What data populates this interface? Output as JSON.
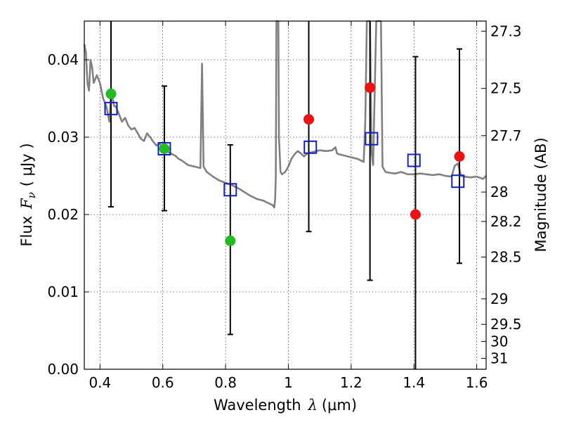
{
  "chart_data": {
    "type": "scatter",
    "xlabel": "Wavelength",
    "xlabel_symbol": "λ",
    "xlabel_unit": "(μm)",
    "ylabel": "Flux",
    "ylabel_symbol": "F",
    "ylabel_subscript": "ν",
    "ylabel_unit": "( μJy )",
    "y2label": "Magnitude (AB)",
    "xlim": [
      0.35,
      1.63
    ],
    "ylim": [
      0.0,
      0.045
    ],
    "grid": true,
    "x_ticks": [
      0.4,
      0.6,
      0.8,
      1.0,
      1.2,
      1.4,
      1.6
    ],
    "x_tick_labels": [
      "0.4",
      "0.6",
      "0.8",
      "1",
      "1.2",
      "1.4",
      "1.6"
    ],
    "y_ticks": [
      0.0,
      0.01,
      0.02,
      0.03,
      0.04
    ],
    "y_tick_labels": [
      "0.00",
      "0.01",
      "0.02",
      "0.03",
      "0.04"
    ],
    "y2_ticks": [
      {
        "label": "27.3",
        "flux": 0.0437
      },
      {
        "label": "27.5",
        "flux": 0.0363
      },
      {
        "label": "27.7",
        "flux": 0.0302
      },
      {
        "label": "28",
        "flux": 0.0229
      },
      {
        "label": "28.2",
        "flux": 0.0191
      },
      {
        "label": "28.5",
        "flux": 0.0145
      },
      {
        "label": "29",
        "flux": 0.0091
      },
      {
        "label": "29.5",
        "flux": 0.0058
      },
      {
        "label": "30",
        "flux": 0.0036
      },
      {
        "label": "31",
        "flux": 0.0014
      }
    ],
    "series": [
      {
        "kind": "model_spectrum",
        "color": "#808080",
        "x": [
          0.35,
          0.355,
          0.36,
          0.365,
          0.37,
          0.375,
          0.38,
          0.39,
          0.4,
          0.41,
          0.42,
          0.425,
          0.43,
          0.435,
          0.44,
          0.445,
          0.45,
          0.46,
          0.47,
          0.48,
          0.49,
          0.5,
          0.51,
          0.52,
          0.53,
          0.54,
          0.55,
          0.56,
          0.57,
          0.58,
          0.59,
          0.6,
          0.62,
          0.64,
          0.65,
          0.66,
          0.68,
          0.7,
          0.72,
          0.725,
          0.73,
          0.74,
          0.76,
          0.78,
          0.8,
          0.82,
          0.84,
          0.86,
          0.88,
          0.9,
          0.92,
          0.94,
          0.95,
          0.955,
          0.958,
          0.96,
          0.962,
          0.965,
          0.968,
          0.97,
          0.975,
          0.98,
          0.99,
          1.0,
          1.01,
          1.02,
          1.03,
          1.04,
          1.05,
          1.06,
          1.08,
          1.1,
          1.12,
          1.14,
          1.15,
          1.155,
          1.16,
          1.18,
          1.2,
          1.22,
          1.24,
          1.245,
          1.25,
          1.255,
          1.26,
          1.265,
          1.27,
          1.28,
          1.29,
          1.295,
          1.3,
          1.305,
          1.31,
          1.32,
          1.34,
          1.36,
          1.38,
          1.4,
          1.42,
          1.44,
          1.46,
          1.48,
          1.5,
          1.52,
          1.53,
          1.54,
          1.55,
          1.56,
          1.58,
          1.6,
          1.62,
          1.63
        ],
        "y": [
          0.042,
          0.041,
          0.037,
          0.036,
          0.04,
          0.039,
          0.037,
          0.038,
          0.037,
          0.035,
          0.034,
          0.033,
          0.032,
          0.036,
          0.035,
          0.034,
          0.034,
          0.033,
          0.032,
          0.0325,
          0.0315,
          0.031,
          0.0312,
          0.0305,
          0.0298,
          0.0295,
          0.0305,
          0.03,
          0.0294,
          0.0289,
          0.0292,
          0.0285,
          0.028,
          0.0276,
          0.0272,
          0.027,
          0.0264,
          0.0262,
          0.026,
          0.0395,
          0.0262,
          0.0255,
          0.0249,
          0.0244,
          0.0241,
          0.0238,
          0.0234,
          0.0229,
          0.0224,
          0.022,
          0.0218,
          0.0214,
          0.0212,
          0.0209,
          0.022,
          0.025,
          0.045,
          0.045,
          0.045,
          0.03,
          0.0255,
          0.0252,
          0.0255,
          0.0262,
          0.0272,
          0.0278,
          0.0282,
          0.0279,
          0.0275,
          0.0279,
          0.0281,
          0.0283,
          0.0282,
          0.0283,
          0.0287,
          0.0279,
          0.0278,
          0.0276,
          0.0274,
          0.0272,
          0.0268,
          0.032,
          0.045,
          0.045,
          0.045,
          0.028,
          0.0264,
          0.045,
          0.045,
          0.045,
          0.0262,
          0.0258,
          0.0255,
          0.0254,
          0.0253,
          0.0255,
          0.0252,
          0.0252,
          0.0253,
          0.0252,
          0.0251,
          0.0252,
          0.025,
          0.0249,
          0.0263,
          0.0266,
          0.025,
          0.0249,
          0.0248,
          0.0249,
          0.0246,
          0.025
        ]
      },
      {
        "kind": "filled_circles",
        "color": "#22bb22",
        "x": [
          0.435,
          0.605,
          0.815
        ],
        "y": [
          0.0356,
          0.0285,
          0.0166
        ]
      },
      {
        "kind": "filled_circles",
        "color": "#ee1111",
        "x": [
          1.065,
          1.26,
          1.405,
          1.545
        ],
        "y": [
          0.0323,
          0.0364,
          0.02,
          0.0275
        ]
      },
      {
        "kind": "open_squares",
        "color": "#1020c0",
        "x": [
          0.435,
          0.605,
          0.815,
          1.07,
          1.265,
          1.4,
          1.54
        ],
        "y": [
          0.0337,
          0.0285,
          0.0232,
          0.0287,
          0.0298,
          0.027,
          0.0243
        ]
      },
      {
        "kind": "error_bars",
        "color": "#000000",
        "x": [
          0.435,
          0.605,
          0.815,
          1.065,
          1.26,
          1.405,
          1.545
        ],
        "low": [
          0.021,
          0.0205,
          0.0045,
          0.0178,
          0.0115,
          0.0,
          0.0137
        ],
        "high": [
          0.045,
          0.0366,
          0.029,
          0.045,
          0.045,
          0.0404,
          0.0414
        ]
      }
    ]
  }
}
